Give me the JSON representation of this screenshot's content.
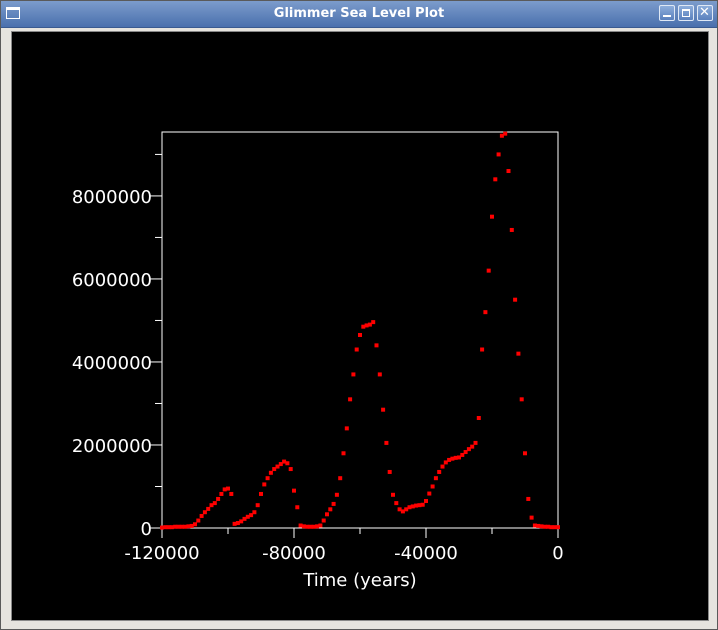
{
  "window": {
    "title": "Glimmer Sea Level Plot"
  },
  "chart_data": {
    "type": "scatter",
    "xlabel": "Time (years)",
    "color": "#ff0000",
    "xlim": [
      -120000,
      0
    ],
    "xticks": [
      -120000,
      -80000,
      -40000,
      0
    ],
    "xminorticks": [
      -100000,
      -60000,
      -20000
    ],
    "ylim": [
      0,
      9540000
    ],
    "yticks": [
      0,
      2000000,
      4000000,
      6000000,
      8000000
    ],
    "yminorticks": [
      1000000,
      3000000,
      5000000,
      7000000,
      9000000
    ],
    "x": [
      -120000,
      -119000,
      -118000,
      -117000,
      -116000,
      -115000,
      -114000,
      -113000,
      -112000,
      -111000,
      -110000,
      -109000,
      -108000,
      -107000,
      -106000,
      -105000,
      -104000,
      -103000,
      -102000,
      -101000,
      -100000,
      -99000,
      -98000,
      -97000,
      -96000,
      -95000,
      -94000,
      -93000,
      -92000,
      -91000,
      -90000,
      -89000,
      -88000,
      -87000,
      -86000,
      -85000,
      -84000,
      -83000,
      -82000,
      -81000,
      -80000,
      -79000,
      -78000,
      -77000,
      -76000,
      -75000,
      -74000,
      -73000,
      -72000,
      -71000,
      -70000,
      -69000,
      -68000,
      -67000,
      -66000,
      -65000,
      -64000,
      -63000,
      -62000,
      -61000,
      -60000,
      -59000,
      -58000,
      -57000,
      -56000,
      -55000,
      -54000,
      -53000,
      -52000,
      -51000,
      -50000,
      -49000,
      -48000,
      -47000,
      -46000,
      -45000,
      -44000,
      -43000,
      -42000,
      -41000,
      -40000,
      -39000,
      -38000,
      -37000,
      -36000,
      -35000,
      -34000,
      -33000,
      -32000,
      -31000,
      -30000,
      -29000,
      -28000,
      -27000,
      -26000,
      -25000,
      -24000,
      -23000,
      -22000,
      -21000,
      -20000,
      -19000,
      -18000,
      -17000,
      -16000,
      -15000,
      -14000,
      -13000,
      -12000,
      -11000,
      -10000,
      -9000,
      -8000,
      -7000,
      -6000,
      -5000,
      -4000,
      -3000,
      -2000,
      -1000,
      0
    ],
    "values": [
      10000,
      20000,
      20000,
      20000,
      30000,
      30000,
      30000,
      30000,
      40000,
      50000,
      90000,
      180000,
      290000,
      380000,
      460000,
      550000,
      600000,
      700000,
      820000,
      930000,
      950000,
      820000,
      100000,
      120000,
      160000,
      220000,
      270000,
      310000,
      380000,
      550000,
      820000,
      1050000,
      1200000,
      1330000,
      1420000,
      1480000,
      1540000,
      1600000,
      1560000,
      1420000,
      900000,
      500000,
      60000,
      40000,
      30000,
      30000,
      30000,
      40000,
      60000,
      180000,
      330000,
      450000,
      580000,
      800000,
      1200000,
      1800000,
      2400000,
      3100000,
      3700000,
      4300000,
      4650000,
      4850000,
      4880000,
      4900000,
      4960000,
      4400000,
      3700000,
      2850000,
      2050000,
      1350000,
      800000,
      600000,
      450000,
      400000,
      450000,
      500000,
      520000,
      540000,
      550000,
      560000,
      650000,
      830000,
      1000000,
      1200000,
      1350000,
      1480000,
      1580000,
      1640000,
      1670000,
      1690000,
      1700000,
      1760000,
      1830000,
      1900000,
      1960000,
      2050000,
      2650000,
      4300000,
      5200000,
      6200000,
      7500000,
      8400000,
      9000000,
      9450000,
      9500000,
      8600000,
      7180000,
      5500000,
      4200000,
      3100000,
      1800000,
      700000,
      250000,
      60000,
      50000,
      40000,
      30000,
      30000,
      20000,
      20000,
      20000
    ]
  }
}
